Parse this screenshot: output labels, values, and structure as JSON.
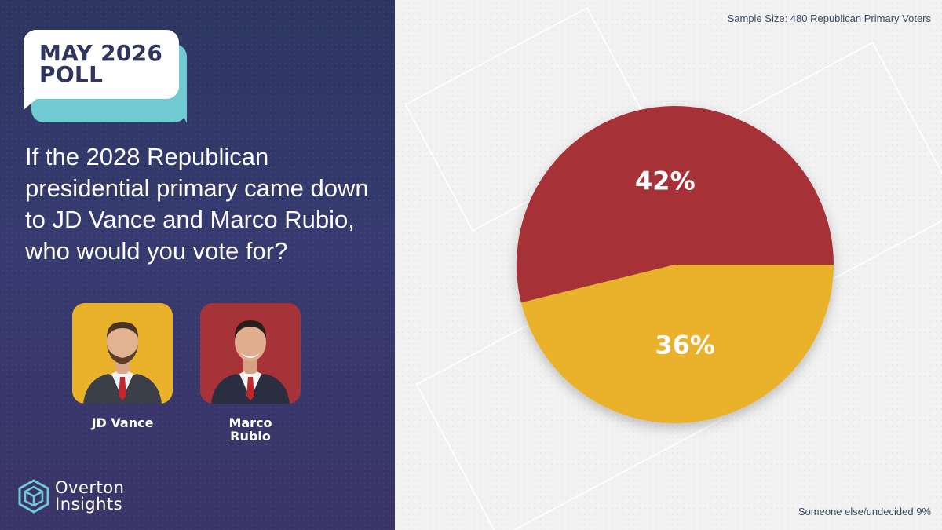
{
  "poll_badge": {
    "line1": "MAY 2026",
    "line2": "POLL"
  },
  "question": "If the 2028 Republican presidential primary came down to JD Vance and Marco Rubio, who would you vote for?",
  "candidates": [
    {
      "name": "JD Vance",
      "photo_bg": "#e9b22a"
    },
    {
      "name_line1": "Marco",
      "name_line2": "Rubio",
      "photo_bg": "#a63337"
    }
  ],
  "logo": {
    "word1": "Overton",
    "word2": "Insights"
  },
  "sample_size": "Sample Size: 480 Republican Primary Voters",
  "footnote": "Someone else/undecided 9%",
  "colors": {
    "panel": "#2d3560",
    "accent": "#6fcad2",
    "vance": "#e9b22a",
    "rubio": "#a63337"
  },
  "chart_data": {
    "type": "pie",
    "slices": [
      {
        "label": "42%",
        "value": 42,
        "color": "#a63337"
      },
      {
        "label": "36%",
        "value": 36,
        "color": "#e9b22a"
      }
    ]
  }
}
